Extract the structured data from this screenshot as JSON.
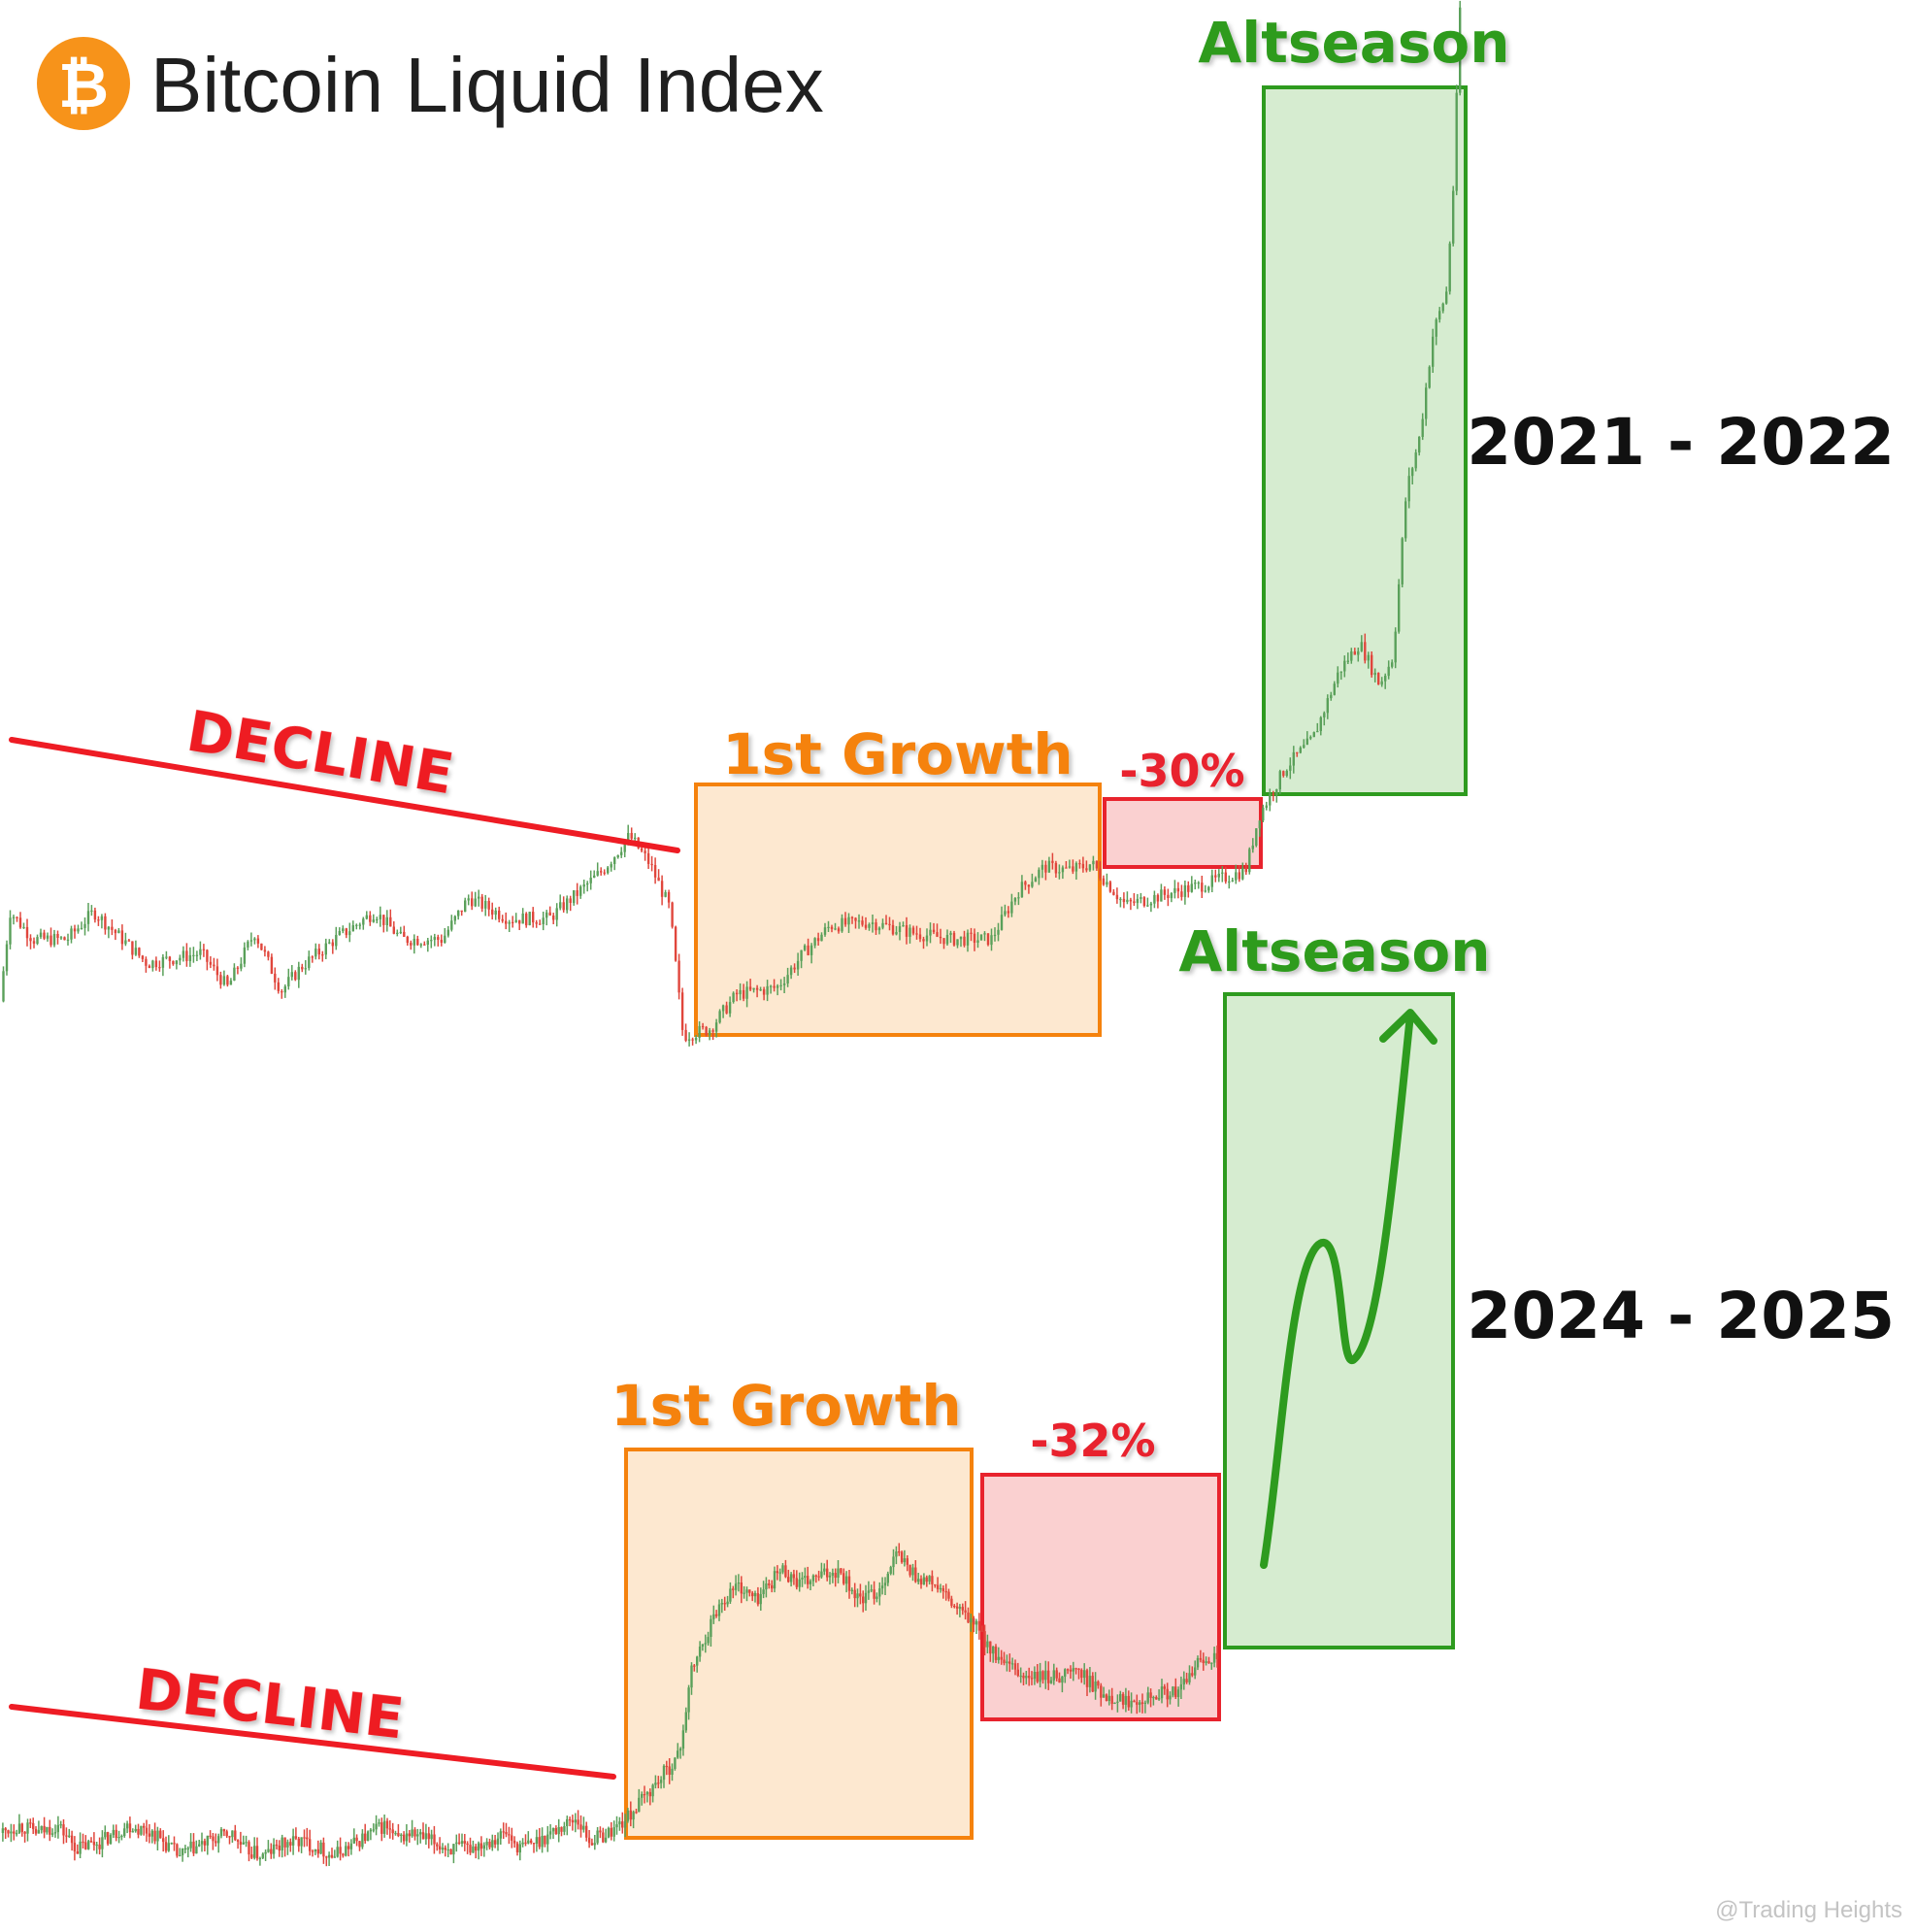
{
  "header": {
    "title": "Bitcoin Liquid Index",
    "logo_glyph": "₿",
    "logo_color": "#f7931a"
  },
  "watermark": "@Trading Heights",
  "colors": {
    "up": "#5aa05a",
    "down": "#e0463c",
    "decline": "#ee1c24",
    "growth": "#f5820d",
    "growth_fill": "#fde4c8",
    "drop": "#e8232d",
    "drop_fill": "#f9c8c8",
    "alt": "#2e9b1f",
    "alt_fill": "#cfe9c8",
    "year_text": "#111111"
  },
  "chart_data": [
    {
      "type": "candlestick",
      "period": "2021 - 2022",
      "phases": [
        {
          "kind": "decline",
          "label": "DECLINE"
        },
        {
          "kind": "growth",
          "label": "1st Growth"
        },
        {
          "kind": "drop",
          "label": "-30%"
        },
        {
          "kind": "altseason",
          "label": "Altseason"
        }
      ],
      "path": [
        [
          0,
          12
        ],
        [
          0.015,
          38
        ],
        [
          0.05,
          30
        ],
        [
          0.1,
          30
        ],
        [
          0.14,
          38
        ],
        [
          0.22,
          23
        ],
        [
          0.3,
          26
        ],
        [
          0.34,
          16
        ],
        [
          0.38,
          32
        ],
        [
          0.42,
          15
        ],
        [
          0.45,
          22
        ],
        [
          0.5,
          30
        ],
        [
          0.56,
          38
        ],
        [
          0.6,
          30
        ],
        [
          0.66,
          30
        ],
        [
          0.7,
          42
        ],
        [
          0.76,
          36
        ],
        [
          0.82,
          36
        ],
        [
          0.9,
          50
        ],
        [
          0.94,
          60
        ],
        [
          0.97,
          52
        ],
        [
          1.0,
          39
        ],
        [
          1.02,
          2
        ],
        [
          1.06,
          4
        ],
        [
          1.1,
          14
        ],
        [
          1.16,
          16
        ],
        [
          1.2,
          26
        ],
        [
          1.24,
          34
        ],
        [
          1.3,
          35
        ],
        [
          1.36,
          32
        ],
        [
          1.42,
          30
        ],
        [
          1.48,
          30
        ],
        [
          1.52,
          44
        ],
        [
          1.56,
          51
        ],
        [
          1.6,
          50
        ],
        [
          1.63,
          52
        ],
        [
          1.68,
          40
        ],
        [
          1.74,
          43
        ],
        [
          1.8,
          46
        ],
        [
          1.86,
          50
        ],
        [
          1.88,
          66
        ],
        [
          1.92,
          80
        ],
        [
          1.96,
          88
        ],
        [
          2.0,
          108
        ],
        [
          2.03,
          116
        ],
        [
          2.06,
          104
        ],
        [
          2.08,
          112
        ],
        [
          2.1,
          160
        ],
        [
          2.12,
          176
        ],
        [
          2.14,
          206
        ],
        [
          2.16,
          218
        ],
        [
          2.17,
          248
        ],
        [
          2.18,
          300
        ]
      ]
    },
    {
      "type": "candlestick",
      "period": "2024 - 2025",
      "phases": [
        {
          "kind": "decline",
          "label": "DECLINE"
        },
        {
          "kind": "growth",
          "label": "1st Growth"
        },
        {
          "kind": "drop",
          "label": "-32%"
        },
        {
          "kind": "altseason",
          "label": "Altseason",
          "projection": true
        }
      ],
      "path": [
        [
          0,
          8
        ],
        [
          0.03,
          10
        ],
        [
          0.06,
          8
        ],
        [
          0.09,
          10
        ],
        [
          0.12,
          4
        ],
        [
          0.16,
          6
        ],
        [
          0.2,
          10
        ],
        [
          0.24,
          8
        ],
        [
          0.28,
          2
        ],
        [
          0.3,
          4
        ],
        [
          0.33,
          6
        ],
        [
          0.36,
          8
        ],
        [
          0.38,
          4
        ],
        [
          0.41,
          2
        ],
        [
          0.44,
          5
        ],
        [
          0.47,
          6
        ],
        [
          0.5,
          4
        ],
        [
          0.52,
          2
        ],
        [
          0.54,
          4
        ],
        [
          0.58,
          8
        ],
        [
          0.6,
          10
        ],
        [
          0.62,
          6
        ],
        [
          0.64,
          8
        ],
        [
          0.67,
          6
        ],
        [
          0.7,
          4
        ],
        [
          0.73,
          4
        ],
        [
          0.76,
          6
        ],
        [
          0.79,
          8
        ],
        [
          0.81,
          4
        ],
        [
          0.84,
          6
        ],
        [
          0.86,
          8
        ],
        [
          0.9,
          12
        ],
        [
          0.92,
          6
        ],
        [
          0.95,
          8
        ],
        [
          0.98,
          12
        ],
        [
          1.02,
          20
        ],
        [
          1.06,
          28
        ],
        [
          1.08,
          50
        ],
        [
          1.12,
          66
        ],
        [
          1.15,
          72
        ],
        [
          1.18,
          68
        ],
        [
          1.22,
          76
        ],
        [
          1.25,
          72
        ],
        [
          1.28,
          74
        ],
        [
          1.31,
          76
        ],
        [
          1.34,
          68
        ],
        [
          1.37,
          70
        ],
        [
          1.4,
          80
        ],
        [
          1.43,
          74
        ],
        [
          1.46,
          72
        ],
        [
          1.49,
          66
        ],
        [
          1.52,
          62
        ],
        [
          1.56,
          52
        ],
        [
          1.6,
          48
        ],
        [
          1.64,
          48
        ],
        [
          1.68,
          50
        ],
        [
          1.72,
          44
        ],
        [
          1.76,
          42
        ],
        [
          1.8,
          44
        ],
        [
          1.84,
          44
        ],
        [
          1.87,
          52
        ],
        [
          1.9,
          54
        ]
      ]
    }
  ]
}
